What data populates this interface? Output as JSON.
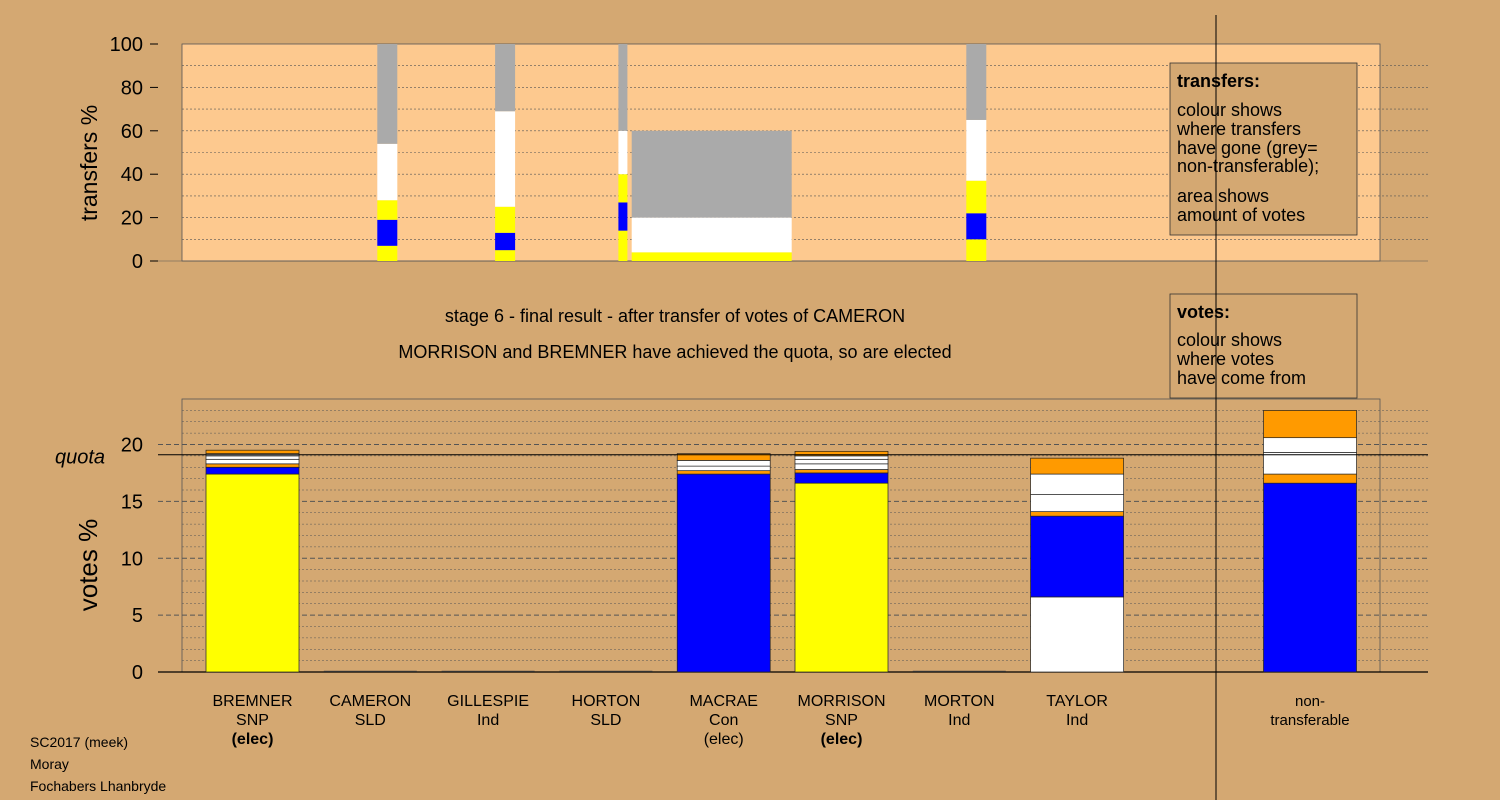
{
  "colors": {
    "background": "#d4a872",
    "plot_fill": "#fdc98f",
    "yellow": "#ffff00",
    "blue": "#0000ff",
    "white": "#ffffff",
    "grey": "#aaaaaa",
    "orange": "#ff9a00"
  },
  "stage_title": "stage 6 - final result - after transfer of votes of CAMERON",
  "stage_subtitle": "MORRISON and BREMNER have achieved the quota, so are elected",
  "footer": [
    "SC2017 (meek)",
    "Moray",
    "Fochabers Lhanbryde"
  ],
  "transfers_legend": {
    "title": "transfers:",
    "lines": [
      "colour shows",
      "where transfers",
      "have gone (grey=",
      "non-transferable);"
    ],
    "lines2": [
      "area shows",
      "amount of votes"
    ]
  },
  "votes_legend": {
    "title": "votes:",
    "lines": [
      "colour shows",
      "where votes",
      "have come from"
    ]
  },
  "chart_data": [
    {
      "type": "bar",
      "ylabel": "transfers %",
      "ylim": [
        0,
        100
      ],
      "yticks": [
        0,
        20,
        40,
        60,
        80,
        100
      ],
      "bars": [
        {
          "candidate_index": 1,
          "width": "narrow",
          "segments": [
            {
              "color": "yellow",
              "value": 7
            },
            {
              "color": "blue",
              "value": 12
            },
            {
              "color": "yellow",
              "value": 9
            },
            {
              "color": "white",
              "value": 26
            },
            {
              "color": "grey",
              "value": 46
            }
          ]
        },
        {
          "candidate_index": 2,
          "width": "narrow",
          "segments": [
            {
              "color": "yellow",
              "value": 5
            },
            {
              "color": "blue",
              "value": 8
            },
            {
              "color": "yellow",
              "value": 12
            },
            {
              "color": "white",
              "value": 44
            },
            {
              "color": "grey",
              "value": 31
            }
          ]
        },
        {
          "candidate_index": 3,
          "width": "thin",
          "segments": [
            {
              "color": "yellow",
              "value": 14
            },
            {
              "color": "blue",
              "value": 13
            },
            {
              "color": "yellow",
              "value": 13
            },
            {
              "color": "white",
              "value": 20
            },
            {
              "color": "grey",
              "value": 40
            }
          ]
        },
        {
          "candidate_index": 4,
          "width": "wide",
          "segments": [
            {
              "color": "yellow",
              "value": 4
            },
            {
              "color": "white",
              "value": 16
            },
            {
              "color": "grey",
              "value": 40
            }
          ]
        },
        {
          "candidate_index": 6,
          "width": "narrow",
          "segments": [
            {
              "color": "yellow",
              "value": 10
            },
            {
              "color": "blue",
              "value": 12
            },
            {
              "color": "yellow",
              "value": 15
            },
            {
              "color": "white",
              "value": 28
            },
            {
              "color": "grey",
              "value": 35
            }
          ]
        }
      ]
    },
    {
      "type": "bar",
      "ylabel": "votes %",
      "ylim": [
        0,
        24
      ],
      "yticks": [
        0,
        5,
        10,
        15,
        20
      ],
      "quota": {
        "label": "quota",
        "value": 19.1
      },
      "categories": [
        {
          "name": "BREMNER",
          "party": "SNP",
          "status": "(elec)",
          "status_bold": true
        },
        {
          "name": "CAMERON",
          "party": "SLD",
          "status": "",
          "status_bold": false
        },
        {
          "name": "GILLESPIE",
          "party": "Ind",
          "status": "",
          "status_bold": false
        },
        {
          "name": "HORTON",
          "party": "SLD",
          "status": "",
          "status_bold": false
        },
        {
          "name": "MACRAE",
          "party": "Con",
          "status": "(elec)",
          "status_bold": false
        },
        {
          "name": "MORRISON",
          "party": "SNP",
          "status": "(elec)",
          "status_bold": true
        },
        {
          "name": "MORTON",
          "party": "Ind",
          "status": "",
          "status_bold": false
        },
        {
          "name": "TAYLOR",
          "party": "Ind",
          "status": "",
          "status_bold": false
        }
      ],
      "nontransferable_label": [
        "non-",
        "transferable"
      ],
      "bars": [
        {
          "segments": [
            {
              "color": "yellow",
              "value": 17.4
            },
            {
              "color": "blue",
              "value": 0.6
            },
            {
              "color": "orange",
              "value": 0.3
            },
            {
              "color": "white",
              "value": 0.4
            },
            {
              "color": "white",
              "value": 0.3
            },
            {
              "color": "white",
              "value": 0.2
            },
            {
              "color": "orange",
              "value": 0.3
            }
          ]
        },
        {
          "segments": []
        },
        {
          "segments": []
        },
        {
          "segments": []
        },
        {
          "segments": [
            {
              "color": "blue",
              "value": 17.4
            },
            {
              "color": "orange",
              "value": 0.3
            },
            {
              "color": "white",
              "value": 0.4
            },
            {
              "color": "white",
              "value": 0.5
            },
            {
              "color": "orange",
              "value": 0.6
            }
          ]
        },
        {
          "segments": [
            {
              "color": "yellow",
              "value": 16.6
            },
            {
              "color": "blue",
              "value": 0.9
            },
            {
              "color": "orange",
              "value": 0.3
            },
            {
              "color": "white",
              "value": 0.5
            },
            {
              "color": "white",
              "value": 0.4
            },
            {
              "color": "white",
              "value": 0.3
            },
            {
              "color": "orange",
              "value": 0.4
            }
          ]
        },
        {
          "segments": []
        },
        {
          "segments": [
            {
              "color": "white",
              "value": 6.6
            },
            {
              "color": "blue",
              "value": 7.1
            },
            {
              "color": "orange",
              "value": 0.4
            },
            {
              "color": "white",
              "value": 1.5
            },
            {
              "color": "white",
              "value": 1.8
            },
            {
              "color": "orange",
              "value": 1.4
            }
          ]
        },
        {
          "segments": [
            {
              "color": "blue",
              "value": 16.6
            },
            {
              "color": "orange",
              "value": 0.8
            },
            {
              "color": "white",
              "value": 1.9
            },
            {
              "color": "white",
              "value": 1.3
            },
            {
              "color": "orange",
              "value": 2.4
            }
          ]
        }
      ]
    }
  ]
}
